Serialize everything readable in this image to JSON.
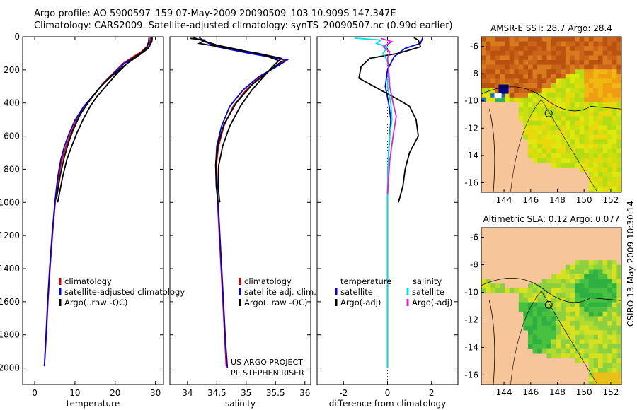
{
  "header": {
    "line1": "Argo profile: AO 5900597_159 07-May-2009 20090509_103 10.909S 147.347E",
    "line2": "Climatology: CARS2009. Satellite-adjusted climatology: synTS_20090507.nc (0.99d earlier)"
  },
  "footer": {
    "credit": "CSIRO 13-May-2009 10:30:14",
    "project": "US ARGO PROJECT",
    "pi": "PI: STEPHEN RISER"
  },
  "colors": {
    "climatology": "#e00000",
    "satellite": "#0000e0",
    "argo": "#000000",
    "sal_satellite": "#00e0e0",
    "sal_argo": "#e020e0",
    "land": "#f7c59a"
  },
  "chart_data": [
    {
      "type": "line",
      "name": "temperature",
      "xlabel": "temperature",
      "xlim": [
        -3,
        32
      ],
      "ylim": [
        0,
        2100
      ],
      "xticks": [
        0,
        10,
        20,
        30
      ],
      "yticks": [
        0,
        200,
        400,
        600,
        800,
        1000,
        1200,
        1400,
        1600,
        1800,
        2000
      ],
      "series": [
        {
          "name": "climatology",
          "color": "#e00000",
          "points": [
            [
              28.8,
              5
            ],
            [
              28.6,
              30
            ],
            [
              27.8,
              60
            ],
            [
              26.5,
              90
            ],
            [
              24.5,
              120
            ],
            [
              22,
              160
            ],
            [
              19.5,
              220
            ],
            [
              17,
              280
            ],
            [
              14.8,
              350
            ],
            [
              12.5,
              420
            ],
            [
              10.5,
              500
            ],
            [
              9,
              580
            ],
            [
              7.8,
              660
            ],
            [
              6.8,
              740
            ],
            [
              5.9,
              850
            ],
            [
              5.1,
              1000
            ],
            [
              4.4,
              1200
            ],
            [
              3.8,
              1400
            ],
            [
              3.3,
              1600
            ],
            [
              2.9,
              1800
            ],
            [
              2.5,
              1950
            ]
          ]
        },
        {
          "name": "satellite-adjusted climatology",
          "color": "#0000e0",
          "points": [
            [
              29,
              5
            ],
            [
              28.9,
              30
            ],
            [
              28.3,
              60
            ],
            [
              27,
              90
            ],
            [
              25,
              120
            ],
            [
              22.3,
              160
            ],
            [
              19.7,
              220
            ],
            [
              17.2,
              280
            ],
            [
              14.7,
              350
            ],
            [
              12.2,
              420
            ],
            [
              10.1,
              500
            ],
            [
              8.6,
              580
            ],
            [
              7.4,
              660
            ],
            [
              6.5,
              740
            ],
            [
              5.7,
              850
            ],
            [
              5,
              1000
            ],
            [
              4.3,
              1200
            ],
            [
              3.7,
              1400
            ],
            [
              3.2,
              1600
            ],
            [
              2.8,
              1800
            ],
            [
              2.4,
              1990
            ]
          ]
        },
        {
          "name": "Argo(..raw -QC)",
          "color": "#000000",
          "points": [
            [
              28.4,
              5
            ],
            [
              28.3,
              30
            ],
            [
              27.9,
              60
            ],
            [
              26.8,
              90
            ],
            [
              25,
              120
            ],
            [
              23,
              160
            ],
            [
              20.5,
              220
            ],
            [
              18,
              290
            ],
            [
              15.5,
              360
            ],
            [
              13.8,
              420
            ],
            [
              12,
              500
            ],
            [
              10.5,
              580
            ],
            [
              9.2,
              660
            ],
            [
              8,
              740
            ],
            [
              6.9,
              850
            ],
            [
              5.7,
              1000
            ]
          ]
        },
        {
          "name": "Argo(..raw -QC) ",
          "color": "#000000",
          "points": [
            [
              29.2,
              5
            ],
            [
              29.1,
              30
            ],
            [
              28.2,
              70
            ],
            [
              26,
              110
            ],
            [
              22.5,
              170
            ],
            [
              19,
              240
            ],
            [
              16,
              310
            ],
            [
              13.5,
              390
            ],
            [
              11.3,
              470
            ],
            [
              9.6,
              560
            ],
            [
              8.4,
              640
            ],
            [
              7.3,
              730
            ],
            [
              6.3,
              840
            ],
            [
              5.4,
              980
            ]
          ]
        }
      ],
      "legend": {
        "location": "lower-right",
        "entries": [
          "climatology",
          "satellite-adjusted climatology",
          "Argo(..raw -QC)"
        ]
      }
    },
    {
      "type": "line",
      "name": "salinity",
      "xlabel": "salinity",
      "xlim": [
        33.7,
        36.1
      ],
      "ylim": [
        0,
        2100
      ],
      "xticks": [
        34,
        34.5,
        35,
        35.5,
        36
      ],
      "series": [
        {
          "name": "climatology",
          "color": "#e00000",
          "points": [
            [
              34.2,
              5
            ],
            [
              34.3,
              30
            ],
            [
              34.6,
              60
            ],
            [
              35.1,
              100
            ],
            [
              35.65,
              140
            ],
            [
              35.5,
              180
            ],
            [
              35.25,
              240
            ],
            [
              35,
              320
            ],
            [
              34.78,
              420
            ],
            [
              34.62,
              540
            ],
            [
              34.53,
              660
            ],
            [
              34.49,
              780
            ],
            [
              34.5,
              900
            ],
            [
              34.52,
              1050
            ],
            [
              34.55,
              1250
            ],
            [
              34.58,
              1450
            ],
            [
              34.61,
              1650
            ],
            [
              34.64,
              1850
            ],
            [
              34.66,
              1990
            ]
          ]
        },
        {
          "name": "satellite adj. clim.",
          "color": "#0000e0",
          "points": [
            [
              34.2,
              5
            ],
            [
              34.3,
              30
            ],
            [
              34.5,
              60
            ],
            [
              35.05,
              100
            ],
            [
              35.7,
              140
            ],
            [
              35.52,
              180
            ],
            [
              35.22,
              240
            ],
            [
              34.95,
              320
            ],
            [
              34.72,
              420
            ],
            [
              34.58,
              540
            ],
            [
              34.5,
              660
            ],
            [
              34.48,
              780
            ],
            [
              34.5,
              900
            ],
            [
              34.53,
              1050
            ],
            [
              34.56,
              1250
            ],
            [
              34.59,
              1450
            ],
            [
              34.62,
              1650
            ],
            [
              34.65,
              1850
            ],
            [
              34.68,
              2000
            ]
          ]
        },
        {
          "name": "Argo(..raw -QC)",
          "color": "#000000",
          "points": [
            [
              34.05,
              10
            ],
            [
              34.3,
              20
            ],
            [
              34.2,
              40
            ],
            [
              34.7,
              70
            ],
            [
              35.2,
              100
            ],
            [
              35.6,
              130
            ],
            [
              35.45,
              180
            ],
            [
              35.3,
              240
            ],
            [
              35.1,
              320
            ],
            [
              34.9,
              420
            ],
            [
              34.72,
              540
            ],
            [
              34.6,
              660
            ],
            [
              34.53,
              780
            ],
            [
              34.52,
              900
            ],
            [
              34.55,
              1000
            ]
          ]
        },
        {
          "name": "Argo(..raw -QC) ",
          "color": "#000000",
          "points": [
            [
              34.1,
              5
            ],
            [
              34.5,
              50
            ],
            [
              35.3,
              110
            ],
            [
              35.6,
              150
            ],
            [
              35.38,
              210
            ],
            [
              35.1,
              290
            ],
            [
              34.83,
              400
            ],
            [
              34.62,
              530
            ],
            [
              34.52,
              650
            ],
            [
              34.48,
              770
            ],
            [
              34.49,
              900
            ],
            [
              34.52,
              1000
            ]
          ]
        }
      ],
      "legend": {
        "location": "lower-right",
        "entries": [
          "climatology",
          "satellite adj. clim.",
          "Argo(..raw -QC)"
        ]
      }
    },
    {
      "type": "line",
      "name": "difference",
      "xlabel": "difference from climatology",
      "xlim": [
        -3.2,
        3.2
      ],
      "ylim": [
        0,
        2100
      ],
      "xticks": [
        -2,
        0,
        2
      ],
      "series": [
        {
          "name": "temperature satellite",
          "color": "#0000e0",
          "points": [
            [
              1.6,
              5
            ],
            [
              1.5,
              40
            ],
            [
              0.8,
              70
            ],
            [
              0.3,
              120
            ],
            [
              0,
              200
            ],
            [
              -0.1,
              300
            ],
            [
              0.05,
              400
            ],
            [
              0.15,
              500
            ],
            [
              0.1,
              600
            ],
            [
              0.05,
              700
            ],
            [
              0.02,
              800
            ],
            [
              0,
              1000
            ],
            [
              0,
              1300
            ],
            [
              0,
              1600
            ],
            [
              0,
              1800
            ],
            [
              0,
              2000
            ]
          ]
        },
        {
          "name": "temperature Argo(-adj)",
          "color": "#000000",
          "points": [
            [
              1.2,
              5
            ],
            [
              1.4,
              20
            ],
            [
              1.5,
              60
            ],
            [
              0.5,
              100
            ],
            [
              -0.8,
              130
            ],
            [
              -1.2,
              180
            ],
            [
              -1.3,
              250
            ],
            [
              -0.2,
              330
            ],
            [
              0.5,
              380
            ],
            [
              1.0,
              420
            ],
            [
              1.3,
              500
            ],
            [
              1.4,
              600
            ],
            [
              1.0,
              700
            ],
            [
              0.8,
              800
            ],
            [
              0.7,
              900
            ],
            [
              0.5,
              1000
            ]
          ]
        },
        {
          "name": "salinity satellite",
          "color": "#00e0e0",
          "points": [
            [
              -1.5,
              8
            ],
            [
              -0.3,
              20
            ],
            [
              -0.5,
              40
            ],
            [
              0,
              60
            ],
            [
              -0.2,
              100
            ],
            [
              0,
              150
            ],
            [
              0.05,
              200
            ],
            [
              0,
              300
            ],
            [
              0.15,
              400
            ],
            [
              0.2,
              500
            ],
            [
              0.1,
              600
            ],
            [
              0.05,
              700
            ],
            [
              0.02,
              800
            ],
            [
              0,
              1000
            ],
            [
              0,
              1300
            ],
            [
              0,
              1600
            ],
            [
              0,
              1800
            ],
            [
              0,
              2000
            ]
          ]
        },
        {
          "name": "salinity Argo(-adj)",
          "color": "#e020e0",
          "points": [
            [
              -0.3,
              10
            ],
            [
              0.2,
              30
            ],
            [
              -0.2,
              60
            ],
            [
              0.1,
              90
            ],
            [
              0,
              130
            ],
            [
              0.05,
              200
            ],
            [
              0.1,
              300
            ],
            [
              0.25,
              400
            ],
            [
              0.4,
              480
            ],
            [
              0.3,
              560
            ],
            [
              0.2,
              650
            ],
            [
              0.1,
              750
            ],
            [
              0.05,
              850
            ],
            [
              0,
              950
            ]
          ]
        }
      ],
      "legend": {
        "location": "lower-center",
        "headers": [
          "temperature",
          "salinity"
        ],
        "entries": [
          "satellite",
          "Argo(-adj)",
          "satellite",
          "Argo(-adj)"
        ]
      }
    },
    {
      "type": "heatmap",
      "name": "sst-map",
      "title": "AMSR-E SST: 28.7  Argo: 28.4",
      "xlim": [
        142.3,
        152.8
      ],
      "ylim": [
        -16.7,
        -5.3
      ],
      "xticks": [
        144,
        146,
        148,
        150,
        152
      ],
      "yticks": [
        -6,
        -8,
        -10,
        -12,
        -14,
        -16
      ],
      "marker": {
        "lon": 147.35,
        "lat": -10.91
      }
    },
    {
      "type": "heatmap",
      "name": "sla-map",
      "title": "Altimetric SLA: 0.12  Argo: 0.077",
      "xlim": [
        142.3,
        152.8
      ],
      "ylim": [
        -16.7,
        -5.3
      ],
      "xticks": [
        144,
        146,
        148,
        150,
        152
      ],
      "yticks": [
        -6,
        -8,
        -10,
        -12,
        -14,
        -16
      ],
      "marker": {
        "lon": 147.35,
        "lat": -10.91
      }
    }
  ]
}
